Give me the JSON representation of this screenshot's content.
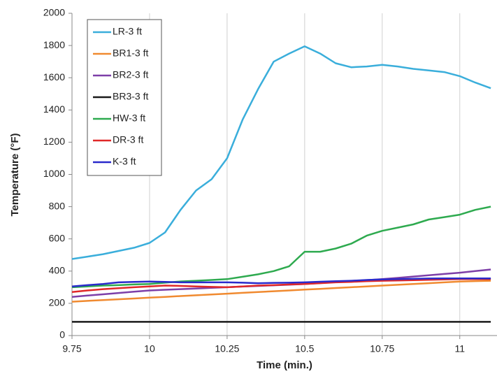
{
  "chart_data": {
    "type": "line",
    "x_label": "Time (min.)",
    "y_label": "Temperature (°F)",
    "x": [
      9.75,
      9.8,
      9.85,
      9.9,
      9.95,
      10.0,
      10.05,
      10.1,
      10.15,
      10.2,
      10.25,
      10.3,
      10.35,
      10.4,
      10.45,
      10.5,
      10.55,
      10.6,
      10.65,
      10.7,
      10.75,
      10.8,
      10.85,
      10.9,
      10.95,
      11.0,
      11.05,
      11.1
    ],
    "series": [
      {
        "name": "LR-3 ft",
        "color": "#3aaedb",
        "values": [
          475,
          490,
          505,
          525,
          545,
          575,
          640,
          780,
          900,
          970,
          1100,
          1340,
          1530,
          1700,
          1750,
          1795,
          1750,
          1690,
          1665,
          1670,
          1680,
          1670,
          1655,
          1645,
          1635,
          1610,
          1570,
          1535
        ]
      },
      {
        "name": "BR1-3 ft",
        "color": "#f08a30",
        "values": [
          210,
          215,
          220,
          225,
          230,
          235,
          240,
          245,
          250,
          255,
          260,
          265,
          270,
          275,
          280,
          285,
          290,
          295,
          300,
          305,
          310,
          315,
          320,
          325,
          330,
          335,
          338,
          340
        ]
      },
      {
        "name": "BR2-3 ft",
        "color": "#7d3fa8",
        "values": [
          240,
          248,
          256,
          264,
          272,
          280,
          284,
          288,
          292,
          296,
          300,
          304,
          308,
          312,
          316,
          320,
          326,
          332,
          338,
          344,
          350,
          358,
          366,
          374,
          382,
          390,
          400,
          410
        ]
      },
      {
        "name": "BR3-3 ft",
        "color": "#1a1a1a",
        "values": [
          85,
          85,
          85,
          85,
          85,
          85,
          85,
          85,
          85,
          85,
          85,
          85,
          85,
          85,
          85,
          85,
          85,
          85,
          85,
          85,
          85,
          85,
          85,
          85,
          85,
          85,
          85,
          85
        ]
      },
      {
        "name": "HW-3 ft",
        "color": "#2eaa4f",
        "values": [
          300,
          305,
          310,
          313,
          317,
          320,
          328,
          336,
          340,
          345,
          350,
          365,
          380,
          400,
          430,
          520,
          520,
          540,
          570,
          620,
          650,
          670,
          690,
          720,
          735,
          750,
          780,
          800
        ]
      },
      {
        "name": "DR-3 ft",
        "color": "#e02828",
        "values": [
          270,
          280,
          288,
          294,
          300,
          305,
          310,
          308,
          305,
          302,
          300,
          305,
          310,
          313,
          317,
          320,
          325,
          330,
          333,
          337,
          340,
          342,
          344,
          346,
          348,
          350,
          350,
          350
        ]
      },
      {
        "name": "K-3 ft",
        "color": "#2a2acb",
        "values": [
          305,
          313,
          320,
          330,
          333,
          335,
          333,
          330,
          330,
          330,
          330,
          328,
          325,
          327,
          328,
          330,
          334,
          337,
          340,
          345,
          348,
          350,
          352,
          354,
          355,
          355,
          355,
          355
        ]
      }
    ],
    "xlim": [
      9.75,
      11.12
    ],
    "xticks": [
      9.75,
      10,
      10.25,
      10.5,
      10.75,
      11
    ],
    "ylim": [
      0,
      2000
    ],
    "yticks": [
      0,
      200,
      400,
      600,
      800,
      1000,
      1200,
      1400,
      1600,
      1800,
      2000
    ],
    "grid": "x",
    "legend": "upper left"
  }
}
